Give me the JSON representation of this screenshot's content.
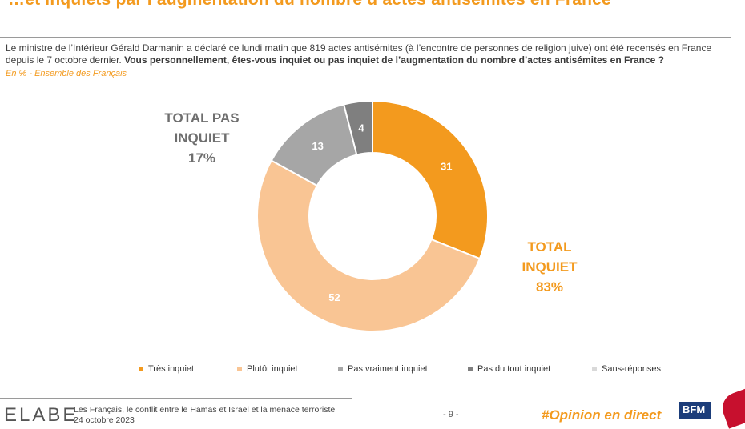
{
  "header": {
    "title": "…et inquiets par l’augmentation du nombre d’actes antisémites en France",
    "question_intro": "Le ministre de l’Intérieur Gérald Darmanin a déclaré ce lundi matin que 819 actes antisémites (à l’encontre de personnes de religion juive) ont été recensés en France depuis le 7 octobre dernier. ",
    "question_bold": "Vous personnellement, êtes-vous inquiet ou pas inquiet de l’augmentation du nombre d’actes antisémites en France ?",
    "base": "En % - Ensemble des Français"
  },
  "totals": {
    "negative_line1": "TOTAL PAS",
    "negative_line2": "INQUIET",
    "negative_value": "17%",
    "positive_line1": "TOTAL",
    "positive_line2": "INQUIET",
    "positive_value": "83%"
  },
  "chart_data": {
    "type": "pie",
    "variant": "donut",
    "start": "top",
    "direction": "clockwise",
    "categories": [
      "Très inquiet",
      "Plutôt inquiet",
      "Pas vraiment inquiet",
      "Pas du tout inquiet",
      "Sans-réponses"
    ],
    "values": [
      31,
      52,
      13,
      4,
      0
    ],
    "colors": [
      "#f39a1e",
      "#f9c594",
      "#a6a6a6",
      "#7f7f7f",
      "#d9d9d9"
    ],
    "label_colors": [
      "#ffffff",
      "#ffffff",
      "#ffffff",
      "#ffffff",
      "#ffffff"
    ],
    "legend_position": "bottom"
  },
  "footer": {
    "logo": "ELABE",
    "study_title": "Les Français, le conflit entre le Hamas et Israël et la menace terroriste",
    "study_date": "24 octobre 2023",
    "page": "- 9 -",
    "hashtag": "#Opinion en direct",
    "partner_logo": "BFM"
  }
}
